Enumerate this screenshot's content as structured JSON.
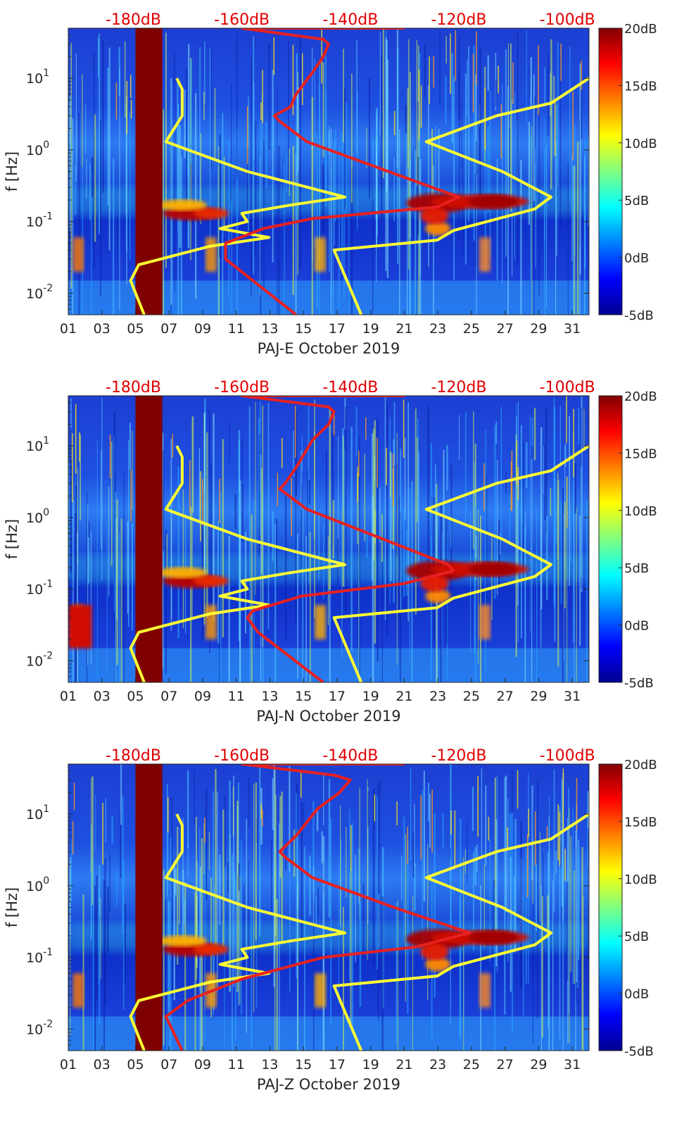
{
  "chart_data": [
    {
      "type": "heatmap",
      "title": "PAJ-E October 2019",
      "xlabel": "PAJ-E October 2019",
      "ylabel": "f [Hz]",
      "x_ticks": [
        "01",
        "03",
        "05",
        "07",
        "09",
        "11",
        "13",
        "15",
        "17",
        "19",
        "21",
        "23",
        "25",
        "27",
        "29",
        "31"
      ],
      "x_range_days": [
        1,
        32
      ],
      "y_scale": "log",
      "y_range_hz": [
        0.005,
        50
      ],
      "y_ticks": [
        {
          "exp": "-2",
          "value": 0.01
        },
        {
          "exp": "-1",
          "value": 0.1
        },
        {
          "exp": "0",
          "value": 1
        },
        {
          "exp": "1",
          "value": 10
        }
      ],
      "top_axis_labels": [
        "-180dB",
        "-160dB",
        "-140dB",
        "-120dB",
        "-100dB"
      ],
      "top_axis_values_db": [
        -180,
        -160,
        -140,
        -120,
        -100
      ],
      "top_axis_range_db": [
        -192,
        -96
      ],
      "colorbar": {
        "labels": [
          "20dB",
          "15dB",
          "10dB",
          "5dB",
          "0dB",
          "-5dB"
        ],
        "range_db": [
          -5,
          20
        ],
        "colormap": "jet"
      },
      "data_gap_days": [
        5.0,
        6.6
      ],
      "series": [
        {
          "name": "noise model (yellow, left)",
          "color": "#ffff33",
          "points": [
            [
              -178,
              0.005
            ],
            [
              -180.5,
              0.015
            ],
            [
              -179,
              0.025
            ],
            [
              -166,
              0.045
            ],
            [
              -155,
              0.06
            ],
            [
              -164,
              0.08
            ],
            [
              -159,
              0.1
            ],
            [
              -160,
              0.13
            ],
            [
              -151,
              0.17
            ],
            [
              -141,
              0.22
            ],
            [
              -159,
              0.5
            ],
            [
              -174,
              1.3
            ],
            [
              -171,
              3
            ],
            [
              -171,
              7
            ],
            [
              -172,
              10
            ]
          ]
        },
        {
          "name": "noise model (yellow, right)",
          "color": "#ffff33",
          "points": [
            [
              -138,
              0.005
            ],
            [
              -143,
              0.04
            ],
            [
              -124,
              0.055
            ],
            [
              -121,
              0.075
            ],
            [
              -106,
              0.15
            ],
            [
              -103,
              0.22
            ],
            [
              -112,
              0.5
            ],
            [
              -126,
              1.3
            ],
            [
              -113,
              3
            ],
            [
              -103,
              4.5
            ],
            [
              -96,
              10
            ]
          ]
        },
        {
          "name": "median PSD (red)",
          "color": "#e82020",
          "points": [
            [
              -150,
              0.005
            ],
            [
              -163,
              0.03
            ],
            [
              -163,
              0.05
            ],
            [
              -156,
              0.08
            ],
            [
              -147,
              0.11
            ],
            [
              -124,
              0.16
            ],
            [
              -120,
              0.22
            ],
            [
              -133,
              0.5
            ],
            [
              -148,
              1.3
            ],
            [
              -153,
              2.5
            ],
            [
              -154,
              3
            ],
            [
              -151,
              4
            ],
            [
              -150,
              6
            ],
            [
              -147,
              12
            ],
            [
              -145,
              20
            ],
            [
              -144,
              30
            ],
            [
              -145,
              35
            ],
            [
              -160,
              50
            ],
            [
              -130,
              50
            ]
          ]
        }
      ]
    },
    {
      "type": "heatmap",
      "title": "PAJ-N October 2019",
      "xlabel": "PAJ-N October 2019",
      "ylabel": "f [Hz]",
      "x_ticks": [
        "01",
        "03",
        "05",
        "07",
        "09",
        "11",
        "13",
        "15",
        "17",
        "19",
        "21",
        "23",
        "25",
        "27",
        "29",
        "31"
      ],
      "x_range_days": [
        1,
        32
      ],
      "y_scale": "log",
      "y_range_hz": [
        0.005,
        50
      ],
      "y_ticks": [
        {
          "exp": "-2",
          "value": 0.01
        },
        {
          "exp": "-1",
          "value": 0.1
        },
        {
          "exp": "0",
          "value": 1
        },
        {
          "exp": "1",
          "value": 10
        }
      ],
      "top_axis_labels": [
        "-180dB",
        "-160dB",
        "-140dB",
        "-120dB",
        "-100dB"
      ],
      "top_axis_values_db": [
        -180,
        -160,
        -140,
        -120,
        -100
      ],
      "top_axis_range_db": [
        -192,
        -96
      ],
      "colorbar": {
        "labels": [
          "20dB",
          "15dB",
          "10dB",
          "5dB",
          "0dB",
          "-5dB"
        ],
        "range_db": [
          -5,
          20
        ],
        "colormap": "jet"
      },
      "data_gap_days": [
        5.0,
        6.6
      ],
      "series": [
        {
          "name": "noise model (yellow, left)",
          "color": "#ffff33",
          "points": [
            [
              -178,
              0.005
            ],
            [
              -180.5,
              0.015
            ],
            [
              -179,
              0.025
            ],
            [
              -166,
              0.045
            ],
            [
              -155,
              0.06
            ],
            [
              -164,
              0.08
            ],
            [
              -159,
              0.1
            ],
            [
              -160,
              0.13
            ],
            [
              -151,
              0.17
            ],
            [
              -141,
              0.22
            ],
            [
              -159,
              0.5
            ],
            [
              -174,
              1.3
            ],
            [
              -171,
              3
            ],
            [
              -171,
              7
            ],
            [
              -172,
              10
            ]
          ]
        },
        {
          "name": "noise model (yellow, right)",
          "color": "#ffff33",
          "points": [
            [
              -138,
              0.005
            ],
            [
              -143,
              0.04
            ],
            [
              -124,
              0.055
            ],
            [
              -121,
              0.075
            ],
            [
              -106,
              0.15
            ],
            [
              -103,
              0.22
            ],
            [
              -112,
              0.5
            ],
            [
              -126,
              1.3
            ],
            [
              -113,
              3
            ],
            [
              -103,
              4.5
            ],
            [
              -96,
              10
            ]
          ]
        },
        {
          "name": "median PSD (red)",
          "color": "#e82020",
          "points": [
            [
              -145,
              0.005
            ],
            [
              -157,
              0.025
            ],
            [
              -159,
              0.04
            ],
            [
              -158,
              0.05
            ],
            [
              -149,
              0.08
            ],
            [
              -130,
              0.12
            ],
            [
              -121,
              0.18
            ],
            [
              -122,
              0.22
            ],
            [
              -134,
              0.5
            ],
            [
              -148,
              1.3
            ],
            [
              -153,
              2.5
            ],
            [
              -152,
              3
            ],
            [
              -150,
              5
            ],
            [
              -147,
              12
            ],
            [
              -144,
              20
            ],
            [
              -143,
              30
            ],
            [
              -144,
              35
            ],
            [
              -160,
              50
            ],
            [
              -130,
              50
            ]
          ]
        }
      ]
    },
    {
      "type": "heatmap",
      "title": "PAJ-Z October 2019",
      "xlabel": "PAJ-Z October 2019",
      "ylabel": "f [Hz]",
      "x_ticks": [
        "01",
        "03",
        "05",
        "07",
        "09",
        "11",
        "13",
        "15",
        "17",
        "19",
        "21",
        "23",
        "25",
        "27",
        "29",
        "31"
      ],
      "x_range_days": [
        1,
        32
      ],
      "y_scale": "log",
      "y_range_hz": [
        0.005,
        50
      ],
      "y_ticks": [
        {
          "exp": "-2",
          "value": 0.01
        },
        {
          "exp": "-1",
          "value": 0.1
        },
        {
          "exp": "0",
          "value": 1
        },
        {
          "exp": "1",
          "value": 10
        }
      ],
      "top_axis_labels": [
        "-180dB",
        "-160dB",
        "-140dB",
        "-120dB",
        "-100dB"
      ],
      "top_axis_values_db": [
        -180,
        -160,
        -140,
        -120,
        -100
      ],
      "top_axis_range_db": [
        -192,
        -96
      ],
      "colorbar": {
        "labels": [
          "20dB",
          "15dB",
          "10dB",
          "5dB",
          "0dB",
          "-5dB"
        ],
        "range_db": [
          -5,
          20
        ],
        "colormap": "jet"
      },
      "data_gap_days": [
        5.0,
        6.6
      ],
      "series": [
        {
          "name": "noise model (yellow, left)",
          "color": "#ffff33",
          "points": [
            [
              -178,
              0.005
            ],
            [
              -180.5,
              0.015
            ],
            [
              -179,
              0.025
            ],
            [
              -166,
              0.045
            ],
            [
              -155,
              0.06
            ],
            [
              -164,
              0.08
            ],
            [
              -159,
              0.1
            ],
            [
              -160,
              0.13
            ],
            [
              -151,
              0.17
            ],
            [
              -141,
              0.22
            ],
            [
              -159,
              0.5
            ],
            [
              -174,
              1.3
            ],
            [
              -171,
              3
            ],
            [
              -171,
              7
            ],
            [
              -172,
              10
            ]
          ]
        },
        {
          "name": "noise model (yellow, right)",
          "color": "#ffff33",
          "points": [
            [
              -138,
              0.005
            ],
            [
              -143,
              0.04
            ],
            [
              -124,
              0.055
            ],
            [
              -121,
              0.075
            ],
            [
              -106,
              0.15
            ],
            [
              -103,
              0.22
            ],
            [
              -112,
              0.5
            ],
            [
              -126,
              1.3
            ],
            [
              -113,
              3
            ],
            [
              -103,
              4.5
            ],
            [
              -96,
              10
            ]
          ]
        },
        {
          "name": "median PSD (red)",
          "color": "#e82020",
          "points": [
            [
              -171,
              0.005
            ],
            [
              -174,
              0.015
            ],
            [
              -170,
              0.025
            ],
            [
              -160,
              0.05
            ],
            [
              -145,
              0.1
            ],
            [
              -128,
              0.14
            ],
            [
              -118,
              0.22
            ],
            [
              -132,
              0.5
            ],
            [
              -147,
              1.3
            ],
            [
              -152,
              2.5
            ],
            [
              -153,
              3
            ],
            [
              -150,
              5
            ],
            [
              -146,
              12
            ],
            [
              -142,
              20
            ],
            [
              -140,
              30
            ],
            [
              -143,
              35
            ],
            [
              -160,
              50
            ],
            [
              -130,
              50
            ]
          ]
        }
      ]
    }
  ]
}
